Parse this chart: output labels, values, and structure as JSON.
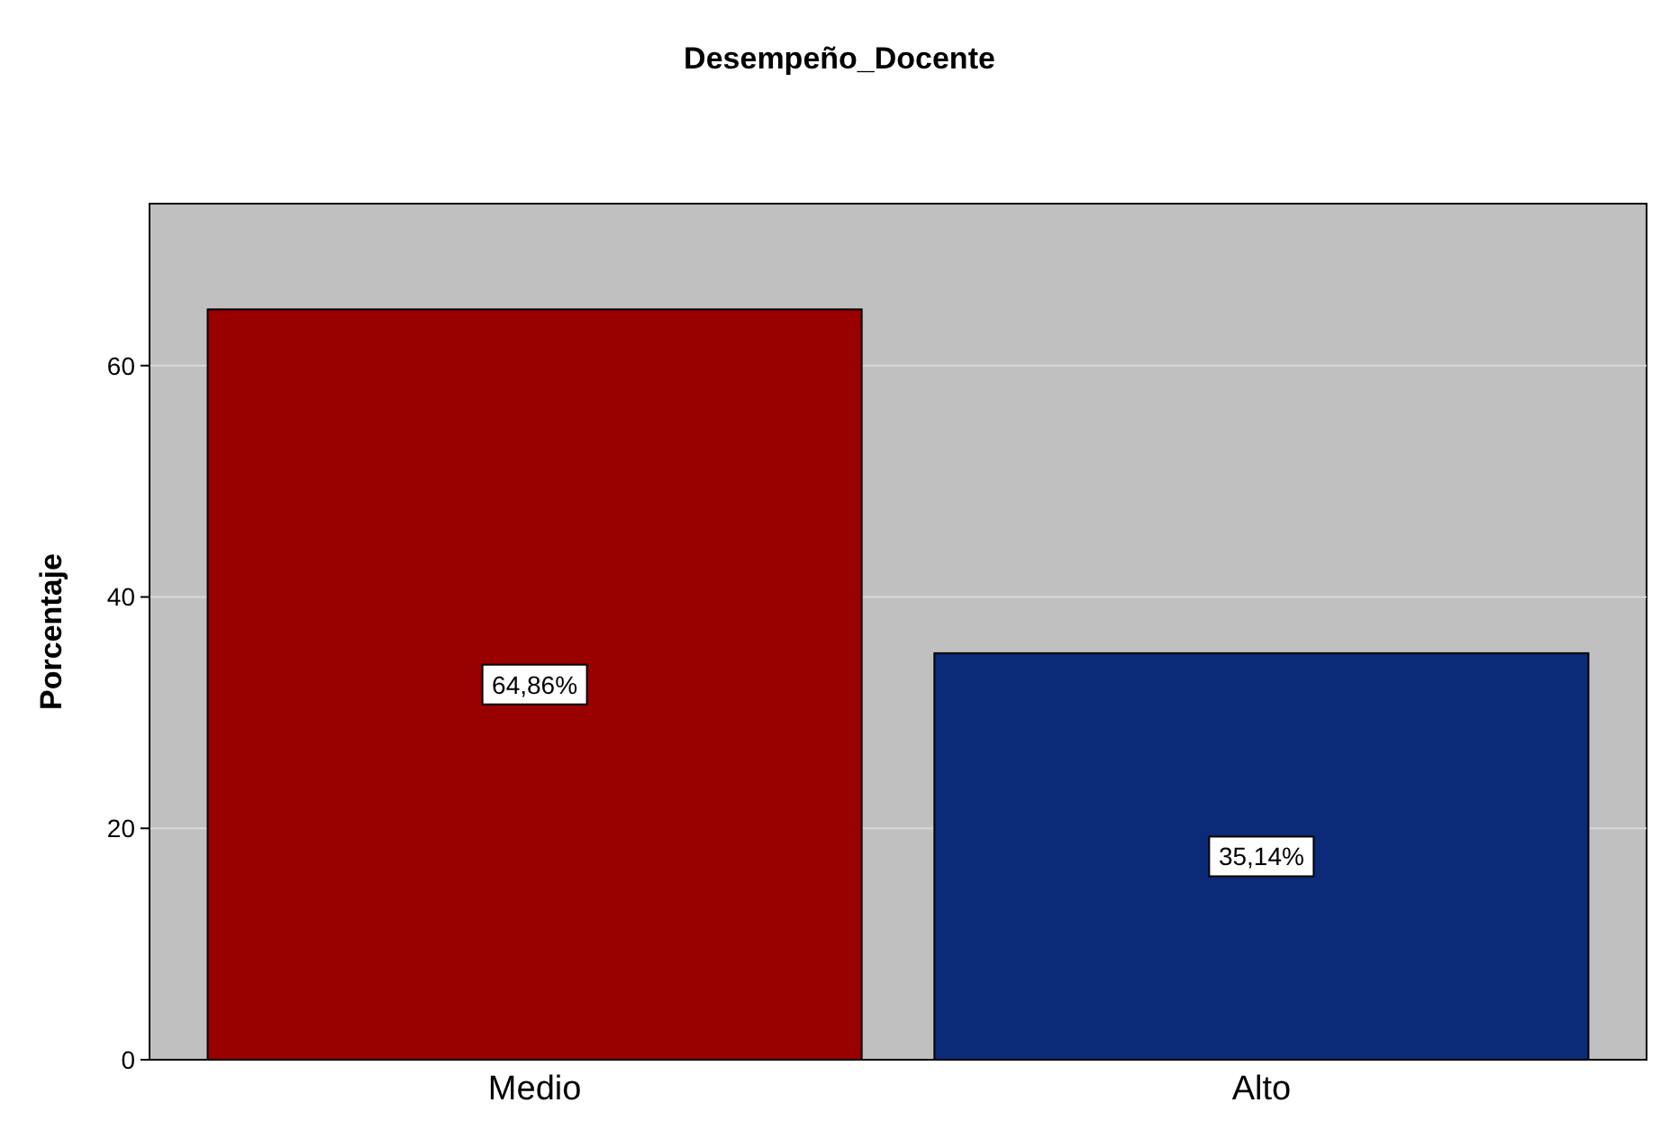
{
  "chart_data": {
    "type": "bar",
    "title": "Desempeño_Docente",
    "ylabel": "Porcentaje",
    "categories": [
      "Medio",
      "Alto"
    ],
    "values": [
      64.86,
      35.14
    ],
    "colors": [
      "#990000",
      "#0b2a78"
    ],
    "value_labels": [
      "64,86%",
      "35,14%"
    ],
    "ylim": [
      0,
      74
    ],
    "yticks": [
      0,
      20,
      40,
      60
    ],
    "grid": "y"
  }
}
